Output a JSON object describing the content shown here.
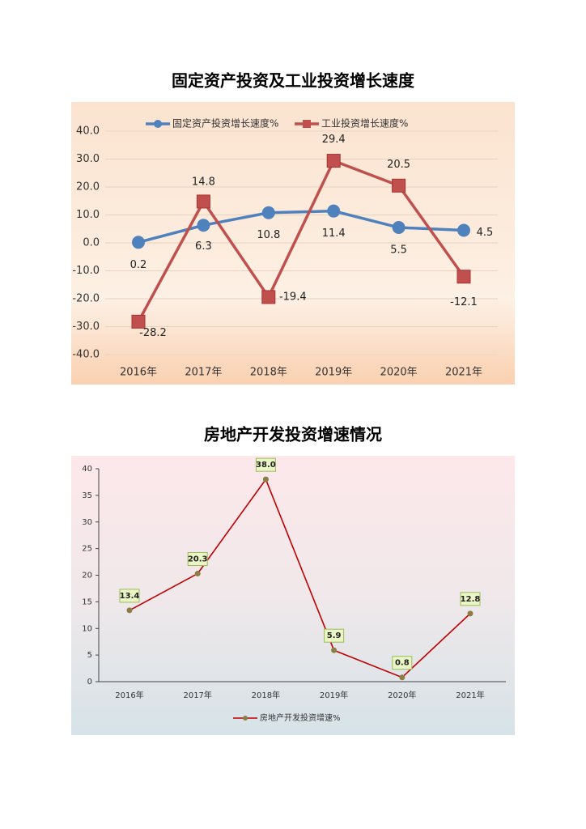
{
  "chart_data": [
    {
      "type": "line",
      "title": "固定资产投资及工业投资增长速度",
      "categories": [
        "2016年",
        "2017年",
        "2018年",
        "2019年",
        "2020年",
        "2021年"
      ],
      "series": [
        {
          "name": "固定资产投资增长速度%",
          "color": "#4f81bd",
          "values": [
            0.2,
            6.3,
            10.8,
            11.4,
            5.5,
            4.5
          ]
        },
        {
          "name": "工业投资增长速度%",
          "color": "#c0504d",
          "values": [
            -28.2,
            14.8,
            -19.4,
            29.4,
            20.5,
            -12.1
          ]
        }
      ],
      "ylim": [
        -40,
        40
      ],
      "yticks": [
        {
          "value": -40,
          "label": "-40.0"
        },
        {
          "value": -30,
          "label": "-30.0"
        },
        {
          "value": -20,
          "label": "-20.0"
        },
        {
          "value": -10,
          "label": "-10.0"
        },
        {
          "value": 0,
          "label": "0.0"
        },
        {
          "value": 10,
          "label": "10.0"
        },
        {
          "value": 20,
          "label": "20.0"
        },
        {
          "value": 30,
          "label": "30.0"
        },
        {
          "value": 40,
          "label": "40.0"
        }
      ],
      "grid": true,
      "legend": "top"
    },
    {
      "type": "line",
      "title": "房地产开发投资增速情况",
      "categories": [
        "2016年",
        "2017年",
        "2018年",
        "2019年",
        "2020年",
        "2021年"
      ],
      "series": [
        {
          "name": "房地产开发投资增速%",
          "color": "#c00000",
          "marker_color": "#8c7d45",
          "values": [
            13.4,
            20.3,
            38.0,
            5.9,
            0.8,
            12.8
          ],
          "value_labels": [
            "13.4",
            "20.3",
            "38.0",
            "5.9",
            "0.8",
            "12.8"
          ]
        }
      ],
      "ylim": [
        0,
        40
      ],
      "yticks": [
        0,
        5,
        10,
        15,
        20,
        25,
        30,
        35,
        40
      ],
      "grid": false,
      "legend": "bottom"
    }
  ]
}
